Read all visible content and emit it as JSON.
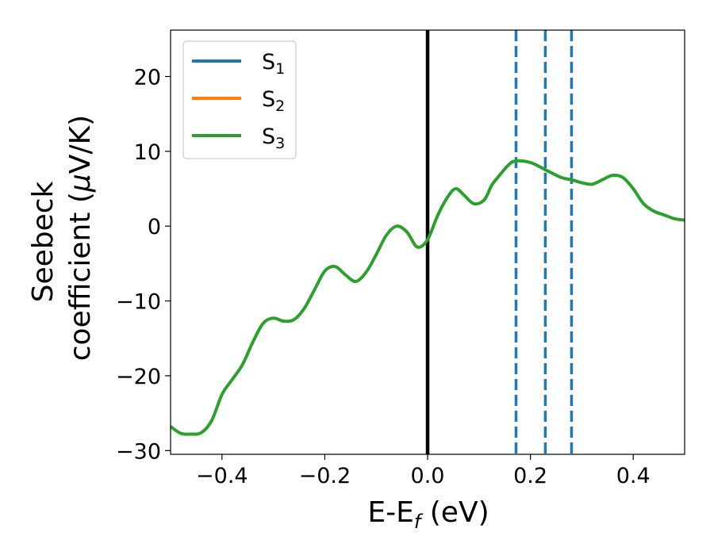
{
  "chart_data": {
    "type": "line",
    "xlabel": "E-E",
    "xlabel_sub": "f",
    "xlabel_unit": " (eV)",
    "ylabel_line1": "Seebeck",
    "ylabel_line2_pre": "coefficient  (",
    "ylabel_mu": "μ",
    "ylabel_line2_post": "V/K)",
    "xlim": [
      -0.5,
      0.5
    ],
    "ylim": [
      -30.5,
      26.2
    ],
    "xticks": [
      -0.4,
      -0.2,
      0.0,
      0.2,
      0.4
    ],
    "xtick_labels": [
      "−0.4",
      "−0.2",
      "0.0",
      "0.2",
      "0.4"
    ],
    "yticks": [
      -30,
      -20,
      -10,
      0,
      10,
      20
    ],
    "ytick_labels": [
      "−30",
      "−20",
      "−10",
      "0",
      "10",
      "20"
    ],
    "legend_position": "top-left",
    "series": [
      {
        "name": "S",
        "sub": "1",
        "color": "#1f77b4",
        "x": [
          -0.5,
          -0.48,
          -0.46,
          -0.44,
          -0.42,
          -0.4,
          -0.38,
          -0.36,
          -0.34,
          -0.32,
          -0.3,
          -0.28,
          -0.26,
          -0.24,
          -0.22,
          -0.2,
          -0.18,
          -0.16,
          -0.14,
          -0.12,
          -0.1,
          -0.08,
          -0.06,
          -0.04,
          -0.02,
          0.0,
          0.02,
          0.04,
          0.055,
          0.07,
          0.09,
          0.11,
          0.125,
          0.14,
          0.155,
          0.175,
          0.2,
          0.23,
          0.26,
          0.28,
          0.3,
          0.32,
          0.34,
          0.36,
          0.38,
          0.4,
          0.42,
          0.44,
          0.46,
          0.48,
          0.5
        ],
        "y": [
          -27.0,
          -27.8,
          -27.8,
          -27.6,
          -26.0,
          -22.5,
          -20.5,
          -18.5,
          -15.5,
          -13.0,
          -12.3,
          -12.7,
          -12.5,
          -11.0,
          -8.5,
          -6.0,
          -5.4,
          -6.5,
          -7.4,
          -6.2,
          -3.8,
          -1.2,
          0.0,
          -0.8,
          -2.8,
          -1.8,
          1.5,
          4.0,
          5.0,
          4.2,
          3.0,
          3.5,
          5.5,
          6.8,
          8.0,
          8.7,
          8.5,
          7.5,
          6.5,
          6.2,
          5.8,
          5.6,
          6.2,
          6.8,
          6.5,
          5.0,
          3.0,
          2.0,
          1.5,
          1.0,
          0.8
        ],
        "visible": false
      },
      {
        "name": "S",
        "sub": "2",
        "color": "#ff7f0e",
        "visible": false
      },
      {
        "name": "S",
        "sub": "3",
        "color": "#2ca02c",
        "x": [
          -0.5,
          -0.48,
          -0.46,
          -0.44,
          -0.42,
          -0.4,
          -0.38,
          -0.36,
          -0.34,
          -0.32,
          -0.3,
          -0.28,
          -0.26,
          -0.24,
          -0.22,
          -0.2,
          -0.18,
          -0.16,
          -0.14,
          -0.12,
          -0.1,
          -0.08,
          -0.06,
          -0.04,
          -0.02,
          0.0,
          0.02,
          0.04,
          0.055,
          0.07,
          0.09,
          0.11,
          0.125,
          0.14,
          0.155,
          0.17,
          0.2,
          0.23,
          0.26,
          0.28,
          0.3,
          0.32,
          0.34,
          0.36,
          0.38,
          0.4,
          0.42,
          0.44,
          0.46,
          0.48,
          0.5
        ],
        "y": [
          -26.8,
          -27.7,
          -27.8,
          -27.6,
          -26.0,
          -22.5,
          -20.5,
          -18.5,
          -15.5,
          -13.0,
          -12.3,
          -12.7,
          -12.5,
          -11.0,
          -8.5,
          -6.0,
          -5.4,
          -6.5,
          -7.4,
          -6.2,
          -3.8,
          -1.2,
          0.0,
          -0.8,
          -2.8,
          -1.8,
          1.5,
          4.0,
          5.0,
          4.2,
          3.0,
          3.5,
          5.5,
          6.8,
          8.0,
          8.7,
          8.5,
          7.5,
          6.5,
          6.2,
          5.8,
          5.6,
          6.2,
          6.8,
          6.5,
          5.0,
          3.0,
          2.0,
          1.5,
          1.0,
          0.8
        ],
        "visible": true
      }
    ],
    "vlines": [
      {
        "x": 0.0,
        "style": "solid",
        "color": "#000000"
      },
      {
        "x": 0.172,
        "style": "dashed",
        "color": "#1f77b4"
      },
      {
        "x": 0.229,
        "style": "dashed",
        "color": "#1f77b4"
      },
      {
        "x": 0.28,
        "style": "dashed",
        "color": "#1f77b4"
      }
    ]
  }
}
